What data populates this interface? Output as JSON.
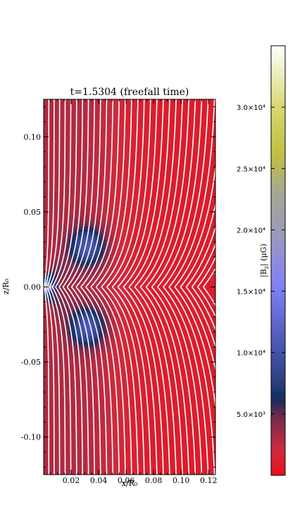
{
  "chart_data": {
    "type": "heatmap",
    "title": "t=1.5304 (freefall time)",
    "xlabel": "x/R₀",
    "ylabel": "z/R₀",
    "colorbar_label": "|B$_{z}$| (μG)",
    "xlim": [
      0,
      0.125
    ],
    "ylim": [
      -0.125,
      0.125
    ],
    "x_ticks": [
      0.02,
      0.04,
      0.06,
      0.08,
      0.1,
      0.12
    ],
    "x_tick_labels": [
      "0.02",
      "0.04",
      "0.06",
      "0.08",
      "0.10",
      "0.12"
    ],
    "y_ticks": [
      0.1,
      0.05,
      0.0,
      -0.05,
      -0.1
    ],
    "y_tick_labels": [
      "0.10",
      "0.05",
      "0.00",
      "-0.05",
      "-0.10"
    ],
    "colorbar": {
      "range": [
        0,
        35000
      ],
      "ticks": [
        5000,
        10000,
        15000,
        20000,
        25000,
        30000
      ],
      "tick_labels": [
        "5.0×10³",
        "1.0×10⁴",
        "1.5×10⁴",
        "2.0×10⁴",
        "2.5×10⁴",
        "3.0×10⁴"
      ],
      "colors": [
        {
          "v": 0.0,
          "c": "#e8101e"
        },
        {
          "v": 0.06,
          "c": "#d02a3c"
        },
        {
          "v": 0.14,
          "c": "#6a2c4e"
        },
        {
          "v": 0.17,
          "c": "#252a5a"
        },
        {
          "v": 0.19,
          "c": "#0f3568"
        },
        {
          "v": 0.21,
          "c": "#2a3c7a"
        },
        {
          "v": 0.3,
          "c": "#4a55b0"
        },
        {
          "v": 0.44,
          "c": "#8080f8"
        },
        {
          "v": 0.55,
          "c": "#9898c0"
        },
        {
          "v": 0.66,
          "c": "#a8a890"
        },
        {
          "v": 0.75,
          "c": "#c0c040"
        },
        {
          "v": 0.86,
          "c": "#d8d870"
        },
        {
          "v": 1.0,
          "c": "#ffffff"
        }
      ]
    },
    "field_map": {
      "background_max": 3000,
      "core_peak": 30000,
      "core_x_scale": 0.006,
      "core_z_scale": 0.002,
      "lobe_peak": 8000,
      "lobe_center_x": 0.032,
      "lobe_center_z": 0.027,
      "lobe_scale": 0.012,
      "outer_level": 1000,
      "outer_boundary_x": 0.06
    },
    "field_lines": {
      "count": 34,
      "start_spacing": 0.0037,
      "color": "#ffffff"
    }
  }
}
